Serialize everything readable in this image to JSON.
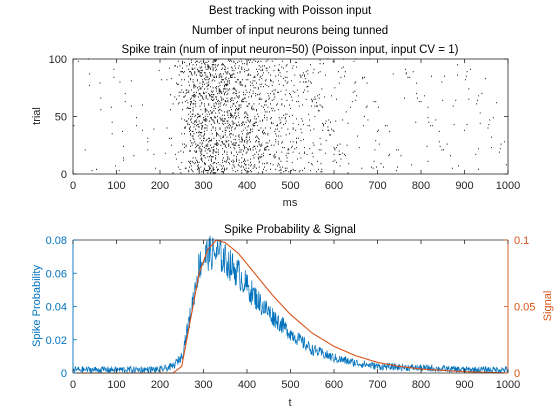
{
  "chart_data": [
    {
      "type": "scatter",
      "title_lines": [
        "Best tracking with Poisson input",
        "Number of input neurons being tunned",
        "Spike train (num of input neuron=50) (Poisson input, input CV = 1)"
      ],
      "xlabel": "ms",
      "ylabel": "trial",
      "xlim": [
        0,
        1000
      ],
      "ylim": [
        0,
        100
      ],
      "xticks": [
        "0",
        "100",
        "200",
        "300",
        "400",
        "500",
        "600",
        "700",
        "800",
        "900",
        "1000"
      ],
      "yticks": [
        "0",
        "50",
        "100"
      ],
      "grid": false,
      "spike_rate_profile": {
        "t": [
          0,
          200,
          240,
          260,
          280,
          300,
          340,
          400,
          450,
          500,
          550,
          600,
          700,
          800,
          900,
          1000
        ],
        "p": [
          0.002,
          0.003,
          0.01,
          0.04,
          0.072,
          0.076,
          0.07,
          0.052,
          0.036,
          0.022,
          0.013,
          0.008,
          0.004,
          0.003,
          0.002,
          0.002
        ]
      },
      "trials": 100,
      "color": "#000000"
    },
    {
      "type": "line",
      "title": "Spike Probability & Signal",
      "xlabel": "t",
      "ylabel_left": "Spike Probability",
      "ylabel_right": "Signal",
      "xlim": [
        0,
        1000
      ],
      "ylim_left": [
        0,
        0.08
      ],
      "ylim_right": [
        0,
        0.1
      ],
      "xticks": [
        "0",
        "100",
        "200",
        "300",
        "400",
        "500",
        "600",
        "700",
        "800",
        "900",
        "1000"
      ],
      "yticks_left": [
        "0",
        "0.02",
        "0.04",
        "0.06",
        "0.08"
      ],
      "yticks_right": [
        "0",
        "0.05",
        "0.1"
      ],
      "series": [
        {
          "axis": "left",
          "color": "#0072BD",
          "x": [
            0,
            100,
            200,
            230,
            250,
            270,
            290,
            310,
            330,
            350,
            380,
            400,
            430,
            460,
            500,
            550,
            600,
            650,
            700,
            800,
            900,
            1000
          ],
          "values": [
            0.002,
            0.002,
            0.002,
            0.004,
            0.01,
            0.035,
            0.065,
            0.072,
            0.072,
            0.068,
            0.06,
            0.052,
            0.042,
            0.034,
            0.024,
            0.014,
            0.009,
            0.006,
            0.004,
            0.003,
            0.002,
            0.002
          ]
        },
        {
          "axis": "right",
          "color": "#D95319",
          "x": [
            0,
            200,
            230,
            250,
            270,
            290,
            310,
            330,
            350,
            380,
            420,
            460,
            500,
            550,
            600,
            650,
            700,
            750,
            800,
            900,
            1000
          ],
          "values": [
            0,
            0,
            0,
            0.005,
            0.04,
            0.075,
            0.093,
            0.1,
            0.098,
            0.09,
            0.074,
            0.058,
            0.044,
            0.03,
            0.02,
            0.013,
            0.008,
            0.005,
            0.003,
            0.001,
            0
          ]
        }
      ]
    }
  ],
  "colors": {
    "axis": "#262626",
    "left_axis": "#0072BD",
    "right_axis": "#D95319",
    "background": "#ffffff"
  }
}
